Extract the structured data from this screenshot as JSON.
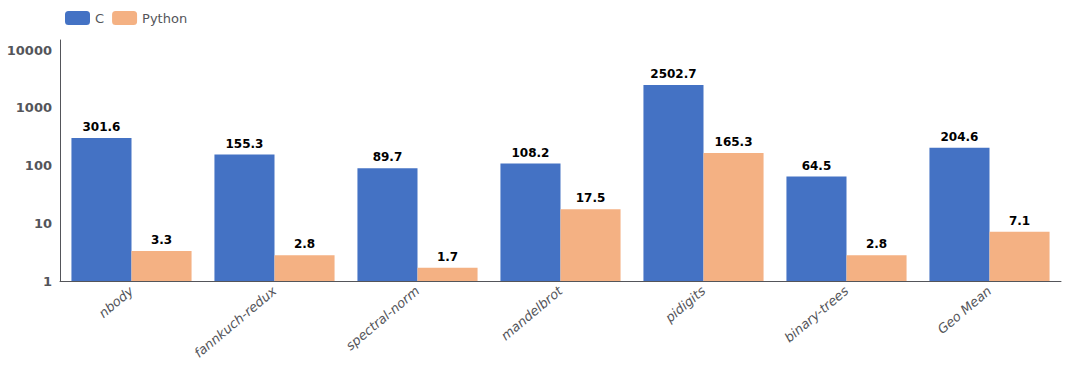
{
  "chart_data": {
    "type": "bar",
    "categories": [
      "nbody",
      "fannkuch-redux",
      "spectral-norm",
      "mandelbrot",
      "pidigits",
      "binary-trees",
      "Geo Mean"
    ],
    "series": [
      {
        "name": "C",
        "color": "#4472C4",
        "values": [
          301.6,
          155.3,
          89.7,
          108.2,
          2502.7,
          64.5,
          204.6
        ]
      },
      {
        "name": "Python",
        "color": "#F4B183",
        "values": [
          3.3,
          2.8,
          1.7,
          17.5,
          165.3,
          2.8,
          7.1
        ]
      }
    ],
    "log": "y",
    "ylim": [
      1,
      15000
    ],
    "yticks": [
      1,
      10,
      100,
      1000,
      10000
    ],
    "grid": false,
    "legend": "upper left",
    "data_labels": true
  }
}
